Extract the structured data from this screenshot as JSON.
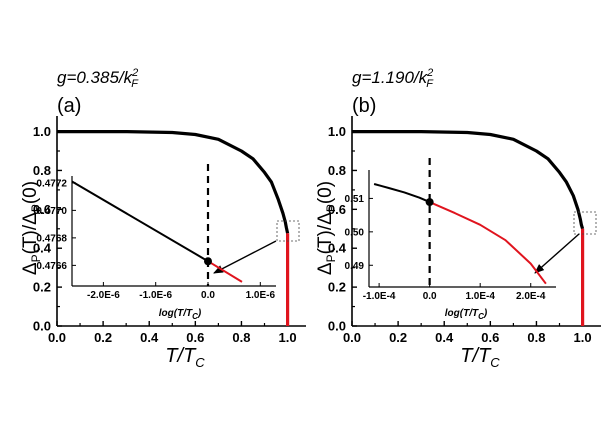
{
  "figure": {
    "panels": [
      {
        "coupling_text": "g=0.385/k",
        "coupling_sup": "2",
        "coupling_sub": "F",
        "letter": "(a)"
      },
      {
        "coupling_text": "g=1.190/k",
        "coupling_sup": "2",
        "coupling_sub": "F",
        "letter": "(b)"
      }
    ],
    "colors": {
      "normal": "#000000",
      "critical": "#e0141e"
    },
    "ylabel": {
      "t1": "Δ",
      "s1": "P",
      "t2": "(T)/Δ",
      "s2": "P",
      "t3": "(0)"
    },
    "xlabel": {
      "t": "T/T",
      "s": "C"
    },
    "inset_xlabel": {
      "t": "log(T/T",
      "s": "C",
      "close": ")"
    }
  },
  "chart_data": [
    {
      "type": "line",
      "panel": "(a)",
      "xlim": [
        0,
        1.08
      ],
      "ylim": [
        0,
        1.08
      ],
      "x_ticks": [
        "0.0",
        "0.2",
        "0.4",
        "0.6",
        "0.8",
        "1.0"
      ],
      "y_ticks": [
        "0.0",
        "0.2",
        "0.4",
        "0.6",
        "0.8",
        "1.0"
      ],
      "series": [
        {
          "color": "#000000",
          "x": [
            0,
            0.3,
            0.5,
            0.6,
            0.7,
            0.8,
            0.85,
            0.9,
            0.93,
            0.96,
            0.98,
            0.99,
            0.995,
            1.0
          ],
          "y": [
            1.0,
            1.0,
            0.995,
            0.985,
            0.96,
            0.9,
            0.86,
            0.79,
            0.74,
            0.65,
            0.58,
            0.535,
            0.505,
            0.477
          ]
        },
        {
          "color": "#e0141e",
          "x": [
            1.0,
            1.0
          ],
          "y": [
            0.477,
            0.0
          ]
        }
      ],
      "inset": {
        "xlim": [
          -2.6e-06,
          1.3e-06
        ],
        "ylim": [
          0.47645,
          0.47725
        ],
        "x_ticks": [
          {
            "v": -2e-06,
            "label": "-2.0E-6"
          },
          {
            "v": -1e-06,
            "label": "-1.0E-6"
          },
          {
            "v": 0,
            "label": "0.0"
          },
          {
            "v": 1e-06,
            "label": "1.0E-6"
          }
        ],
        "y_ticks": [
          {
            "v": 0.4766,
            "label": "0.4766"
          },
          {
            "v": 0.4768,
            "label": "0.4768"
          },
          {
            "v": 0.477,
            "label": "0.4770"
          },
          {
            "v": 0.4772,
            "label": "0.4772"
          }
        ],
        "series": [
          {
            "color": "#000000",
            "x": [
              -2.6e-06,
              0
            ],
            "y": [
              0.47721,
              0.47663
            ]
          },
          {
            "color": "#e0141e",
            "x": [
              0,
              6.5e-07
            ],
            "y": [
              0.47663,
              0.47648
            ]
          }
        ],
        "marker": {
          "x": 0,
          "y": 0.47663
        }
      }
    },
    {
      "type": "line",
      "panel": "(b)",
      "xlim": [
        0,
        1.08
      ],
      "ylim": [
        0,
        1.08
      ],
      "x_ticks": [
        "0.0",
        "0.2",
        "0.4",
        "0.6",
        "0.8",
        "1.0"
      ],
      "y_ticks": [
        "0.0",
        "0.2",
        "0.4",
        "0.6",
        "0.8",
        "1.0"
      ],
      "series": [
        {
          "color": "#000000",
          "x": [
            0,
            0.3,
            0.5,
            0.6,
            0.7,
            0.8,
            0.85,
            0.9,
            0.93,
            0.96,
            0.98,
            0.99,
            0.995,
            1.0
          ],
          "y": [
            1.0,
            1.0,
            0.995,
            0.985,
            0.96,
            0.9,
            0.86,
            0.79,
            0.74,
            0.67,
            0.6,
            0.55,
            0.52,
            0.5
          ]
        },
        {
          "color": "#e0141e",
          "x": [
            1.0,
            1.0
          ],
          "y": [
            0.5,
            0.0
          ]
        }
      ],
      "inset": {
        "xlim": [
          -0.00012,
          0.00025
        ],
        "ylim": [
          0.4835,
          0.5185
        ],
        "x_ticks": [
          {
            "v": -0.0001,
            "label": "-1.0E-4"
          },
          {
            "v": 0,
            "label": "0.0"
          },
          {
            "v": 0.0001,
            "label": "1.0E-4"
          },
          {
            "v": 0.0002,
            "label": "2.0E-4"
          }
        ],
        "y_ticks": [
          {
            "v": 0.49,
            "label": "0.49"
          },
          {
            "v": 0.5,
            "label": "0.50"
          },
          {
            "v": 0.51,
            "label": "0.51"
          }
        ],
        "series": [
          {
            "color": "#000000",
            "x": [
              -0.00011,
              -8e-05,
              -5e-05,
              -2e-05,
              0
            ],
            "y": [
              0.5143,
              0.5131,
              0.5118,
              0.5102,
              0.5089
            ]
          },
          {
            "color": "#e0141e",
            "x": [
              0,
              5e-05,
              0.0001,
              0.00015,
              0.0002,
              0.00023
            ],
            "y": [
              0.5089,
              0.5056,
              0.5021,
              0.4975,
              0.4905,
              0.4845
            ]
          }
        ],
        "marker": {
          "x": 0,
          "y": 0.5089
        }
      }
    }
  ]
}
